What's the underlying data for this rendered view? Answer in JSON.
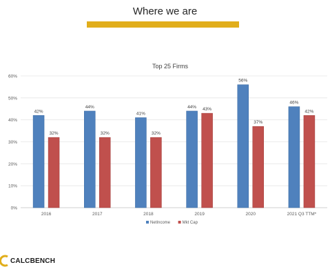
{
  "slide": {
    "title": "Where we are",
    "accent_color": "#E1AE1B"
  },
  "logo": {
    "text": "CALCBENCH",
    "icon": "calcbench-logo-icon"
  },
  "chart_data": {
    "type": "bar",
    "title": "Top 25 Firms",
    "categories": [
      "2016",
      "2017",
      "2018",
      "2019",
      "2020",
      "2021 Q3 TTM*"
    ],
    "series": [
      {
        "name": "NetIncome",
        "color": "#4F81BD",
        "values": [
          42,
          44,
          41,
          44,
          56,
          46
        ],
        "labels": [
          "42%",
          "44%",
          "41%",
          "44%",
          "56%",
          "46%"
        ]
      },
      {
        "name": "Mkt Cap",
        "color": "#C0504D",
        "values": [
          32,
          32,
          32,
          43,
          37,
          42
        ],
        "labels": [
          "32%",
          "32%",
          "32%",
          "43%",
          "37%",
          "42%"
        ]
      }
    ],
    "y_ticks": [
      0,
      10,
      20,
      30,
      40,
      50,
      60
    ],
    "y_tick_labels": [
      "0%",
      "10%",
      "20%",
      "30%",
      "40%",
      "50%",
      "60%"
    ],
    "ylim": [
      0,
      60
    ],
    "xlabel": "",
    "ylabel": "",
    "grid": true,
    "legend_position": "bottom"
  }
}
